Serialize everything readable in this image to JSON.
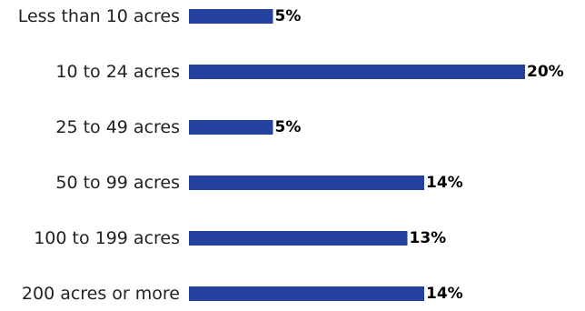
{
  "chart_data": {
    "type": "bar",
    "orientation": "horizontal",
    "categories": [
      "Less than 10 acres",
      "10 to 24 acres",
      "25 to 49 acres",
      "50 to 99 acres",
      "100 to 199 acres",
      "200 acres or more"
    ],
    "values": [
      5,
      20,
      5,
      14,
      13,
      14
    ],
    "value_labels": [
      "5%",
      "20%",
      "5%",
      "14%",
      "13%",
      "14%"
    ],
    "bar_color": "#2541a0",
    "title": "",
    "xlabel": "",
    "ylabel": "",
    "xlim": [
      0,
      20
    ],
    "grid": false,
    "legend": false
  }
}
